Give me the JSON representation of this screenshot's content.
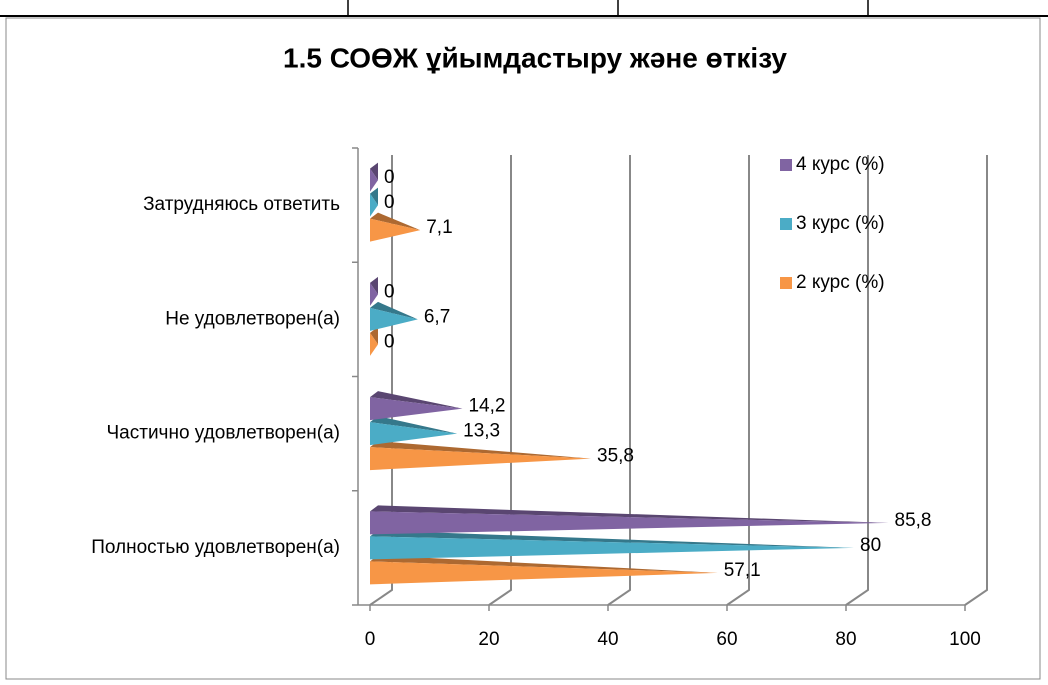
{
  "chart_data": {
    "type": "bar",
    "orientation": "horizontal",
    "style": "3d-cone",
    "title": "1.5 СОӨЖ ұйымдастыру және өткізу",
    "categories": [
      "Полностью удовлетворен(а)",
      "Частично удовлетворен(а)",
      "Не удовлетворен(а)",
      "Затрудняюсь ответить"
    ],
    "series": [
      {
        "name": "2 курс (%)",
        "color": "#f79646",
        "values": [
          57.1,
          35.8,
          0,
          7.1
        ],
        "value_labels": [
          "57,1",
          "35,8",
          "0",
          "7,1"
        ]
      },
      {
        "name": "3 курс (%)",
        "color": "#4bacc6",
        "values": [
          80,
          13.3,
          6.7,
          0
        ],
        "value_labels": [
          "80",
          "13,3",
          "6,7",
          "0"
        ]
      },
      {
        "name": "4 курс (%)",
        "color": "#8064a2",
        "values": [
          85.8,
          14.2,
          0,
          0
        ],
        "value_labels": [
          "85,8",
          "14,2",
          "0",
          "0"
        ]
      }
    ],
    "xlim": [
      0,
      100
    ],
    "xticks": [
      0,
      20,
      40,
      60,
      80,
      100
    ],
    "grid": true,
    "legend": "right"
  }
}
